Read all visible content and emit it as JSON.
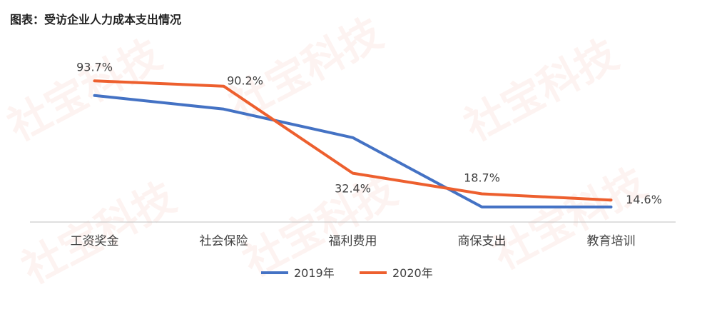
{
  "chart_data": {
    "type": "line",
    "title": "图表：受访企业人力成本支出情况",
    "categories": [
      "工资奖金",
      "社会保险",
      "福利费用",
      "商保支出",
      "教育培训"
    ],
    "series": [
      {
        "name": "2019年",
        "color": "#4472C4",
        "values": [
          84,
          75,
          56,
          10,
          10
        ],
        "labels": [
          "",
          "",
          "",
          "",
          ""
        ]
      },
      {
        "name": "2020年",
        "color": "#ED5F2E",
        "values": [
          93.7,
          90.2,
          32.4,
          18.7,
          14.6
        ],
        "labels": [
          "93.7%",
          "90.2%",
          "32.4%",
          "18.7%",
          "14.6%"
        ]
      }
    ],
    "ylim": [
      0,
      100
    ],
    "grid": false,
    "legend": "bottom",
    "watermark": "社宝科技"
  }
}
